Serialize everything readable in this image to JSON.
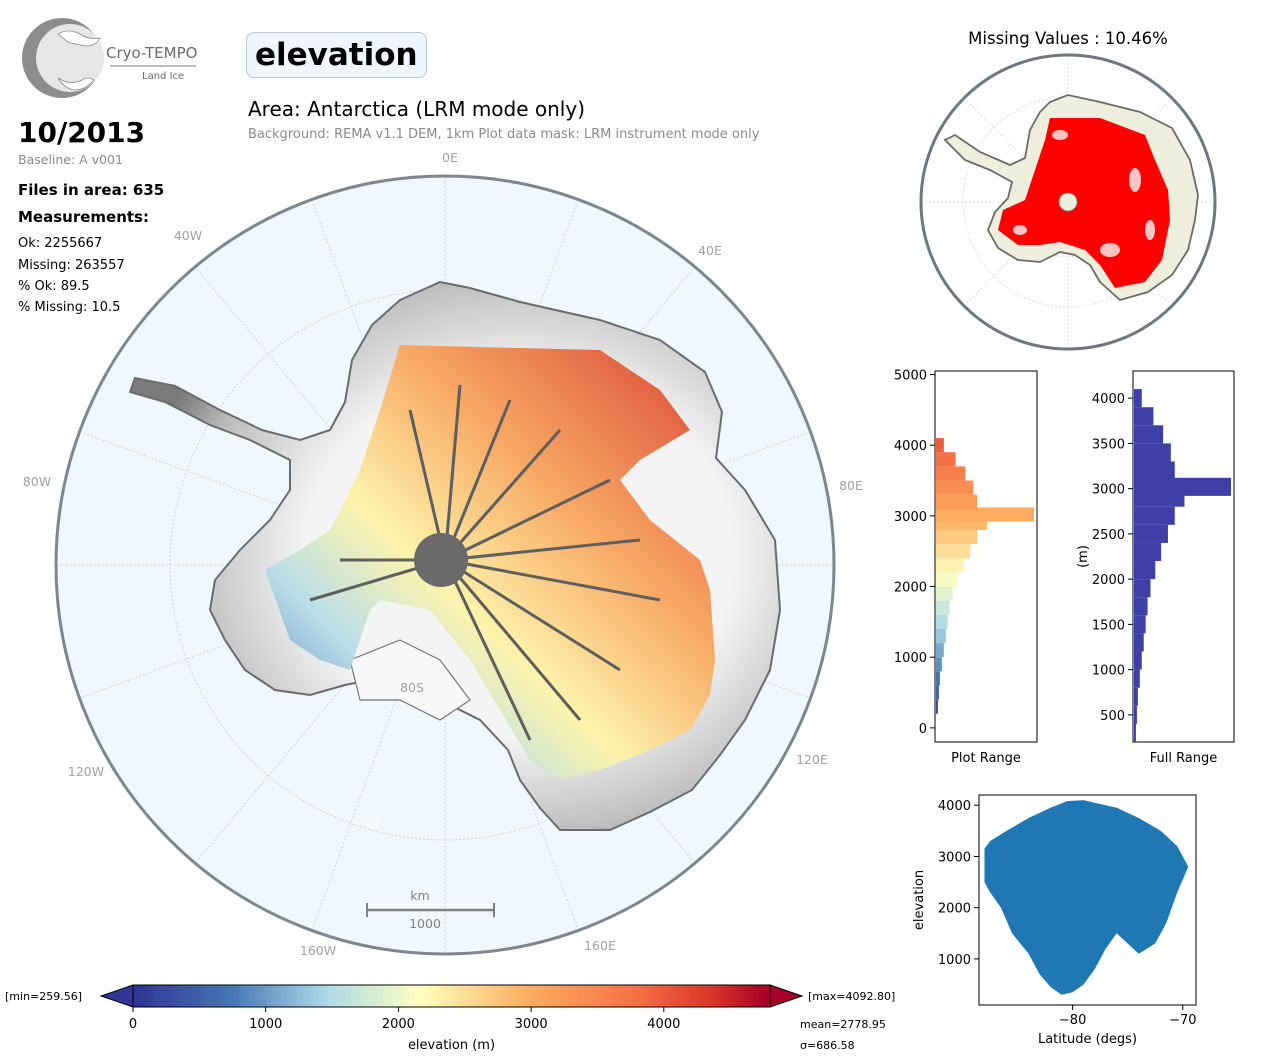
{
  "header": {
    "logo_name": "Cryo-TEMPO",
    "logo_sub": "Land Ice",
    "variable": "elevation",
    "area_title": "Area: Antarctica (LRM mode only)",
    "subtitle": "Background: REMA v1.1 DEM, 1km   Plot data mask: LRM instrument mode only"
  },
  "info": {
    "date": "10/2013",
    "baseline": "Baseline: A v001",
    "files": "Files in area: 635",
    "measurements_label": "Measurements:",
    "ok": "Ok: 2255667",
    "missing": "Missing: 263557",
    "pct_ok": "% Ok: 89.5",
    "pct_missing": "% Missing: 10.5"
  },
  "main_map": {
    "lon_labels": [
      "0E",
      "40E",
      "80E",
      "120E",
      "160E",
      "160W",
      "120W",
      "80W",
      "40W"
    ],
    "lat_labels": [
      "80S",
      "70S"
    ],
    "scalebar_unit": "km",
    "scalebar_value": "1000"
  },
  "inset": {
    "title": "Missing Values : 10.46%"
  },
  "chart_data": [
    {
      "type": "bar",
      "orientation": "horizontal",
      "title": "",
      "xlabel": "Plot Range",
      "ylabel": "",
      "ylim": [
        -200,
        5050
      ],
      "yticks": [
        0,
        1000,
        2000,
        3000,
        4000,
        5000
      ],
      "bin_centers": [
        300,
        500,
        700,
        900,
        1100,
        1300,
        1500,
        1700,
        1900,
        2100,
        2300,
        2500,
        2700,
        2900,
        3020,
        3200,
        3400,
        3600,
        3800,
        4000
      ],
      "values": [
        2,
        3,
        4,
        6,
        8,
        10,
        12,
        14,
        17,
        22,
        28,
        35,
        42,
        52,
        100,
        42,
        38,
        30,
        20,
        8
      ],
      "colormap": "RdYlBu_r"
    },
    {
      "type": "bar",
      "orientation": "horizontal",
      "title": "",
      "xlabel": "Full Range",
      "ylabel": "(m)",
      "ylim": [
        200,
        4300
      ],
      "yticks": [
        500,
        1000,
        1500,
        2000,
        2500,
        3000,
        3500,
        4000
      ],
      "bin_centers": [
        300,
        500,
        700,
        900,
        1100,
        1300,
        1500,
        1700,
        1900,
        2100,
        2300,
        2500,
        2700,
        2900,
        3020,
        3200,
        3400,
        3600,
        3800,
        4000
      ],
      "values": [
        2,
        3,
        4,
        6,
        8,
        10,
        12,
        14,
        17,
        22,
        28,
        35,
        42,
        52,
        100,
        42,
        38,
        30,
        20,
        8
      ],
      "color": "#3f3fa8"
    },
    {
      "type": "scatter",
      "title": "",
      "xlabel": "Latitude (degs)",
      "ylabel": "elevation",
      "xlim": [
        -88.5,
        -68.8
      ],
      "ylim": [
        100,
        4200
      ],
      "xticks": [
        -80,
        -70
      ],
      "yticks": [
        1000,
        2000,
        3000,
        4000
      ],
      "point_color": "#1f77b4",
      "envelope_upper": [
        [
          -88,
          3150
        ],
        [
          -87.5,
          3300
        ],
        [
          -86,
          3500
        ],
        [
          -84,
          3750
        ],
        [
          -82,
          3950
        ],
        [
          -80.5,
          4080
        ],
        [
          -79,
          4100
        ],
        [
          -78,
          4050
        ],
        [
          -76,
          3950
        ],
        [
          -74,
          3750
        ],
        [
          -72,
          3500
        ],
        [
          -70.5,
          3200
        ],
        [
          -69.5,
          2800
        ]
      ],
      "envelope_lower": [
        [
          -69.5,
          2800
        ],
        [
          -70.5,
          2300
        ],
        [
          -71.5,
          1700
        ],
        [
          -72.5,
          1300
        ],
        [
          -74,
          1100
        ],
        [
          -76,
          1500
        ],
        [
          -77,
          1200
        ],
        [
          -78,
          800
        ],
        [
          -79,
          500
        ],
        [
          -80,
          350
        ],
        [
          -81,
          300
        ],
        [
          -82,
          450
        ],
        [
          -83,
          700
        ],
        [
          -84,
          1100
        ],
        [
          -85.5,
          1500
        ],
        [
          -86.5,
          2000
        ],
        [
          -87.5,
          2300
        ],
        [
          -88,
          2500
        ]
      ]
    },
    {
      "type": "colorbar",
      "xlabel": "elevation (m)",
      "range": [
        0,
        4800
      ],
      "ticks": [
        0,
        1000,
        2000,
        3000,
        4000
      ],
      "colormap": "RdYlBu_r",
      "min_label": "[min=259.56]",
      "max_label": "[max=4092.80]",
      "mean_label": "mean=2778.95",
      "sigma_label": "σ=686.58"
    }
  ],
  "colors": {
    "ocean": "#f0f7fe",
    "coast": "#6b6b6b",
    "land_background": "#eeeedd",
    "missing": "#ff0000",
    "grid": "#bbbbbb"
  }
}
